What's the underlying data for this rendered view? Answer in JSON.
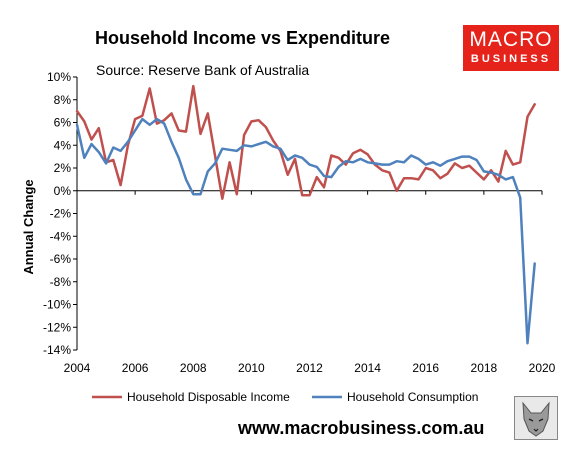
{
  "header": {
    "title": "Household Income vs Expenditure",
    "subtitle": "Source: Reserve Bank of Australia"
  },
  "logo": {
    "line1": "MACRO",
    "line2": "BUSINESS"
  },
  "footer": {
    "url": "www.macrobusiness.com.au",
    "image": "wolf-logo"
  },
  "colors": {
    "income": "#c0504d",
    "consumption": "#4f81bd",
    "logo_bg": "#e5231b"
  },
  "chart_data": {
    "type": "line",
    "title": "Household Income vs Expenditure",
    "subtitle": "Source: Reserve Bank of Australia",
    "xlabel": "",
    "ylabel": "Annual Change",
    "xlim": [
      2004,
      2020
    ],
    "ylim": [
      -14,
      10
    ],
    "x_ticks": [
      2004,
      2006,
      2008,
      2010,
      2012,
      2014,
      2016,
      2018,
      2020
    ],
    "y_ticks": [
      10,
      8,
      6,
      4,
      2,
      0,
      -2,
      -4,
      -6,
      -8,
      -10,
      -12,
      -14
    ],
    "y_tick_labels": [
      "10%",
      "8%",
      "6%",
      "4%",
      "2%",
      "0%",
      "-2%",
      "-4%",
      "-6%",
      "-8%",
      "-10%",
      "-12%",
      "-14%"
    ],
    "grid": false,
    "legend": "bottom",
    "series": [
      {
        "name": "Household Disposable Income",
        "color": "#c0504d",
        "x": [
          2004.0,
          2004.25,
          2004.5,
          2004.75,
          2005.0,
          2005.25,
          2005.5,
          2005.75,
          2006.0,
          2006.25,
          2006.5,
          2006.75,
          2007.0,
          2007.25,
          2007.5,
          2007.75,
          2008.0,
          2008.25,
          2008.5,
          2008.75,
          2009.0,
          2009.25,
          2009.5,
          2009.75,
          2010.0,
          2010.25,
          2010.5,
          2010.75,
          2011.0,
          2011.25,
          2011.5,
          2011.75,
          2012.0,
          2012.25,
          2012.5,
          2012.75,
          2013.0,
          2013.25,
          2013.5,
          2013.75,
          2014.0,
          2014.25,
          2014.5,
          2014.75,
          2015.0,
          2015.25,
          2015.5,
          2015.75,
          2016.0,
          2016.25,
          2016.5,
          2016.75,
          2017.0,
          2017.25,
          2017.5,
          2017.75,
          2018.0,
          2018.25,
          2018.5,
          2018.75,
          2019.0,
          2019.25,
          2019.5,
          2019.75
        ],
        "values": [
          7.0,
          6.1,
          4.5,
          5.5,
          2.5,
          2.7,
          0.5,
          4.0,
          6.3,
          6.6,
          9.0,
          5.9,
          6.2,
          6.8,
          5.3,
          5.2,
          9.2,
          5.0,
          6.8,
          3.1,
          -0.7,
          2.5,
          -0.3,
          4.9,
          6.1,
          6.2,
          5.6,
          4.4,
          3.5,
          1.4,
          2.8,
          -0.4,
          -0.4,
          1.2,
          0.3,
          3.1,
          2.9,
          2.3,
          3.3,
          3.6,
          3.2,
          2.3,
          1.8,
          1.6,
          0.0,
          1.1,
          1.1,
          1.0,
          2.0,
          1.8,
          1.1,
          1.5,
          2.4,
          2.0,
          2.2,
          1.6,
          1.0,
          1.8,
          0.8,
          3.5,
          2.3,
          2.5,
          6.5,
          7.6
        ]
      },
      {
        "name": "Household Consumption",
        "color": "#4f81bd",
        "x": [
          2004.0,
          2004.25,
          2004.5,
          2004.75,
          2005.0,
          2005.25,
          2005.5,
          2005.75,
          2006.0,
          2006.25,
          2006.5,
          2006.75,
          2007.0,
          2007.25,
          2007.5,
          2007.75,
          2008.0,
          2008.25,
          2008.5,
          2008.75,
          2009.0,
          2009.25,
          2009.5,
          2009.75,
          2010.0,
          2010.25,
          2010.5,
          2010.75,
          2011.0,
          2011.25,
          2011.5,
          2011.75,
          2012.0,
          2012.25,
          2012.5,
          2012.75,
          2013.0,
          2013.25,
          2013.5,
          2013.75,
          2014.0,
          2014.25,
          2014.5,
          2014.75,
          2015.0,
          2015.25,
          2015.5,
          2015.75,
          2016.0,
          2016.25,
          2016.5,
          2016.75,
          2017.0,
          2017.25,
          2017.5,
          2017.75,
          2018.0,
          2018.25,
          2018.5,
          2018.75,
          2019.0,
          2019.25,
          2019.5,
          2019.75
        ],
        "values": [
          5.8,
          2.9,
          4.1,
          3.4,
          2.4,
          3.8,
          3.5,
          4.3,
          5.3,
          6.3,
          5.8,
          6.3,
          5.9,
          4.3,
          2.9,
          1.0,
          -0.3,
          -0.3,
          1.7,
          2.4,
          3.7,
          3.6,
          3.5,
          4.0,
          3.9,
          4.1,
          4.3,
          3.9,
          3.7,
          2.7,
          3.1,
          2.9,
          2.3,
          2.1,
          1.3,
          1.2,
          2.1,
          2.6,
          2.5,
          2.8,
          2.5,
          2.4,
          2.3,
          2.3,
          2.6,
          2.5,
          3.1,
          2.8,
          2.3,
          2.5,
          2.2,
          2.6,
          2.8,
          3.0,
          3.0,
          2.7,
          1.7,
          1.6,
          1.4,
          1.0,
          1.2,
          -0.6,
          -13.4,
          -6.4
        ]
      }
    ]
  }
}
